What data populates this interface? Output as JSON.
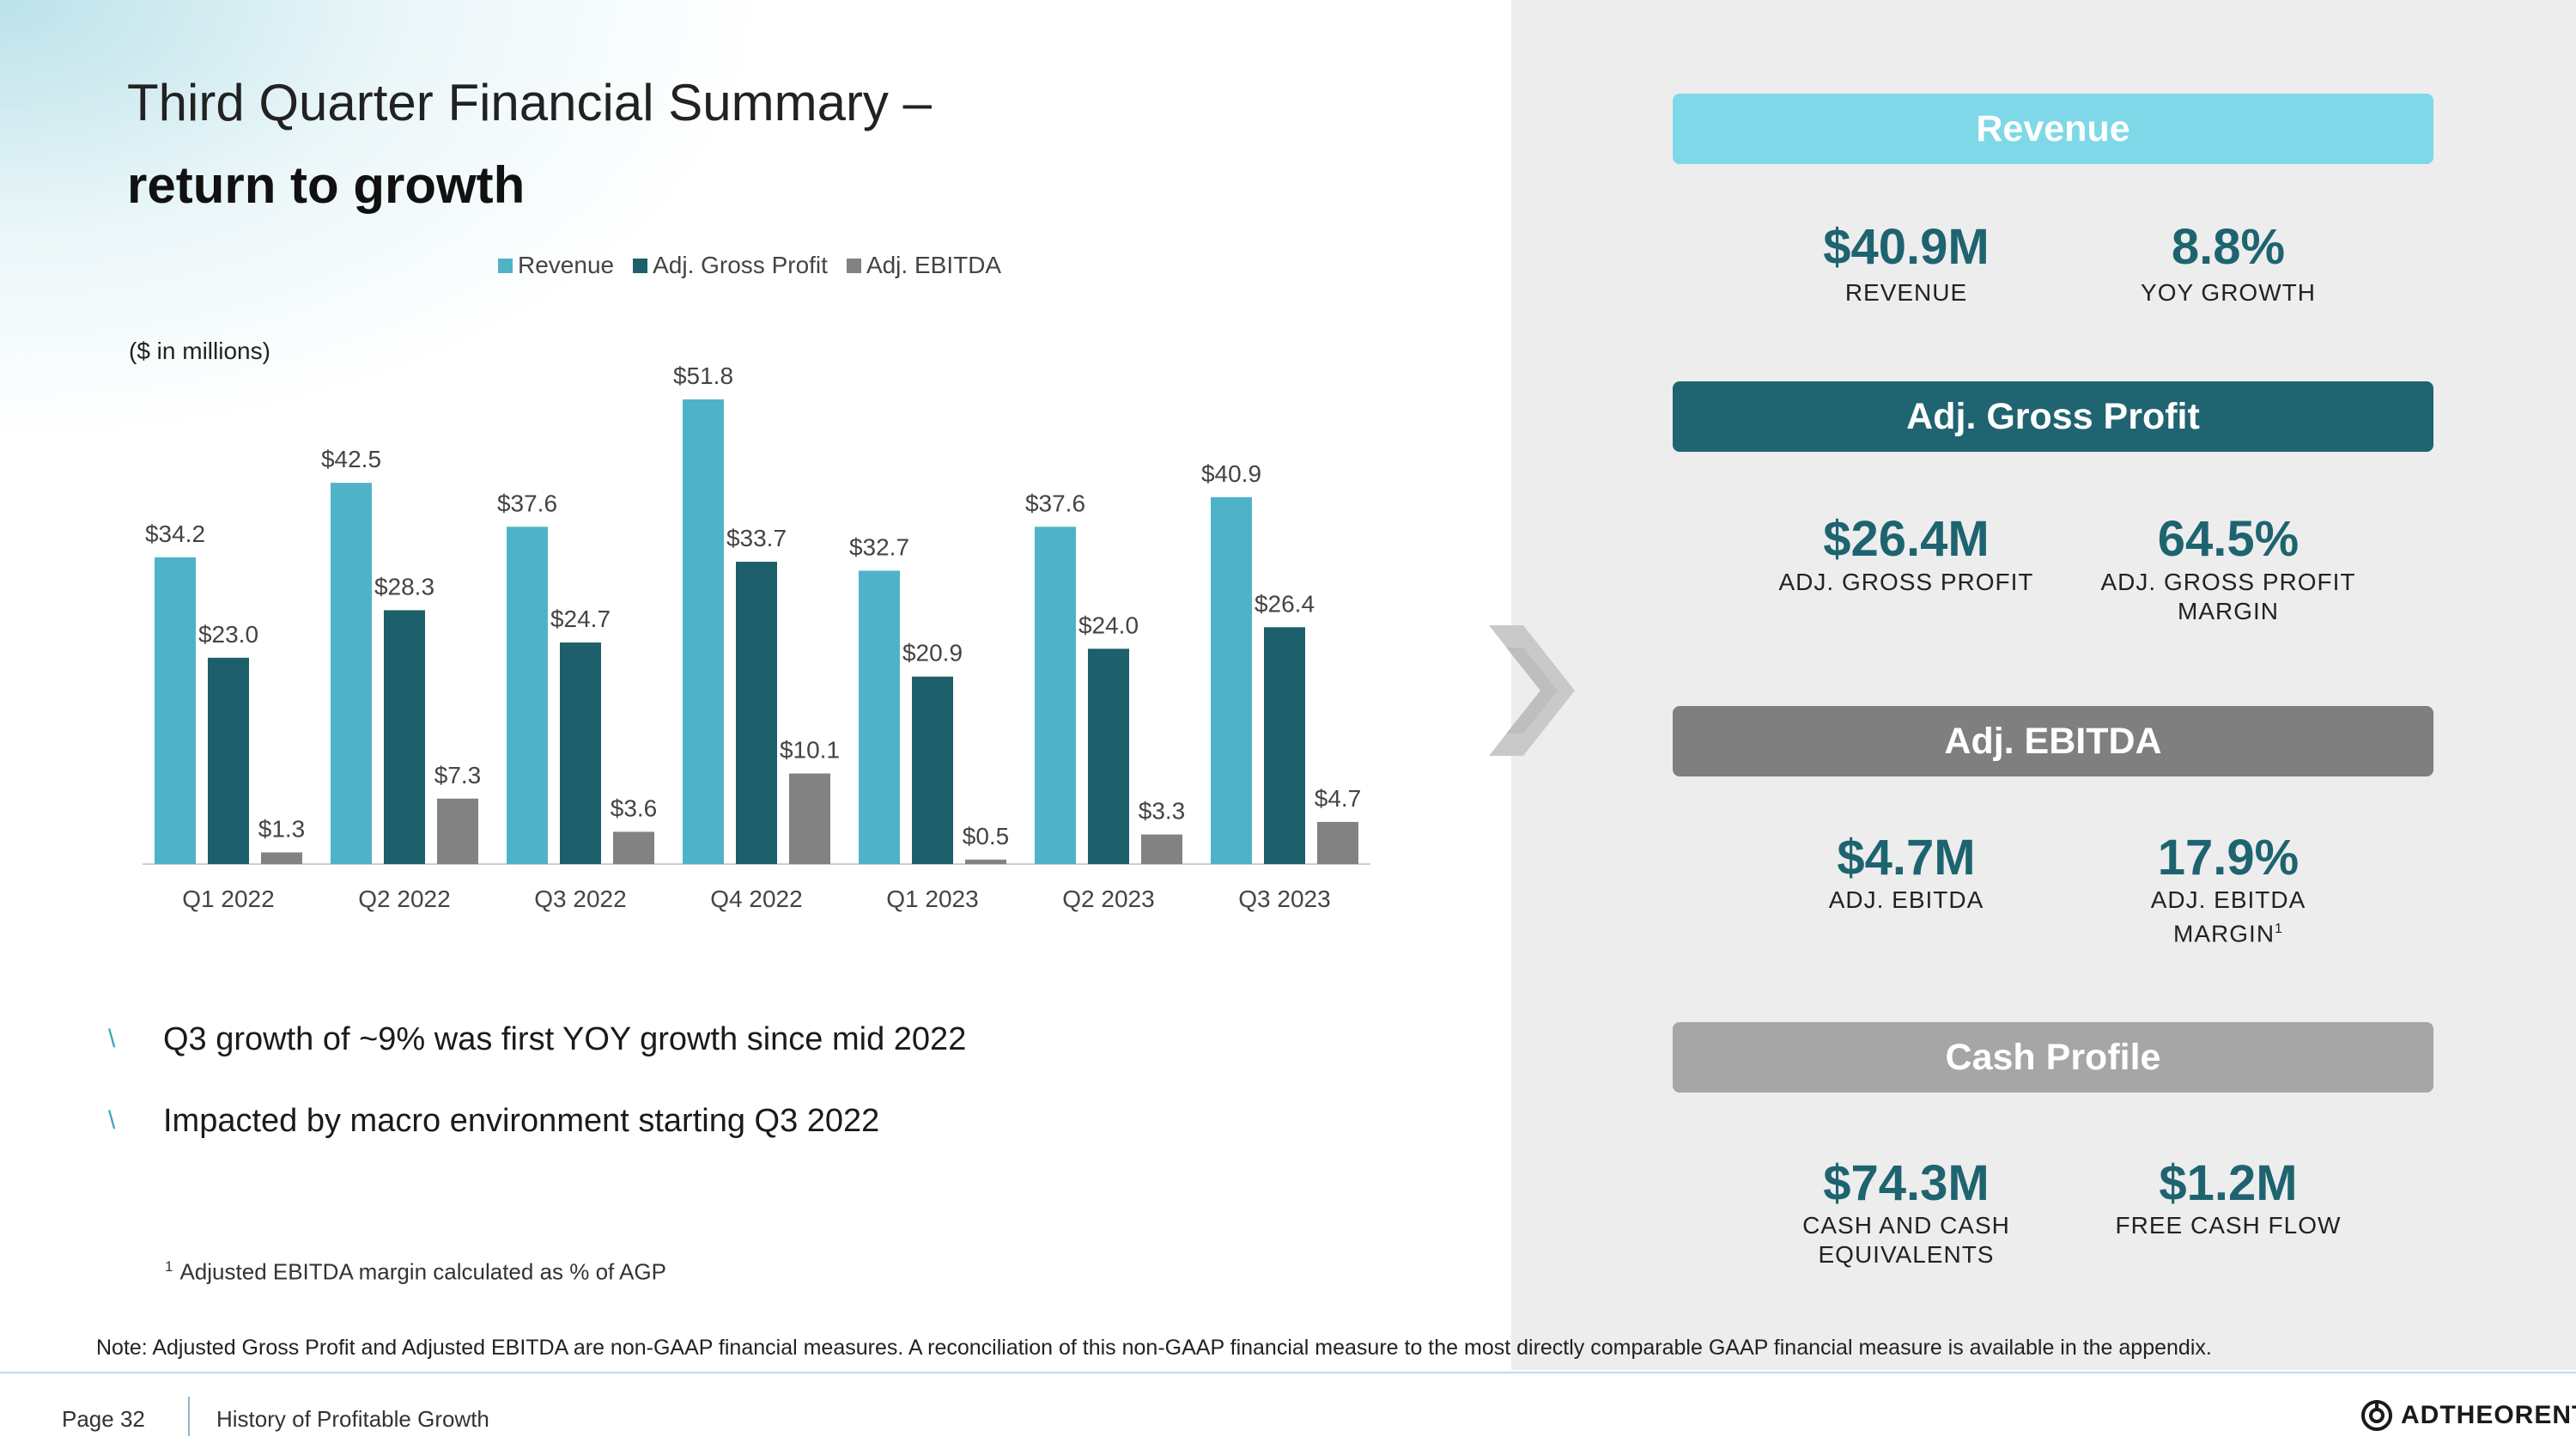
{
  "slide": {
    "title": "Third Quarter Financial Summary –",
    "subtitle": "return to growth",
    "units_label": "($ in millions)",
    "bullets": [
      "Q3 growth of ~9% was first YOY growth since mid 2022",
      "Impacted by macro environment starting Q3 2022"
    ],
    "bullet_mark": "\\",
    "footnote_marker": "1",
    "footnote": "Adjusted EBITDA margin calculated as % of AGP",
    "note": "Note: Adjusted Gross Profit and Adjusted EBITDA are non-GAAP financial measures. A reconciliation of this non-GAAP financial measure to the most directly comparable GAAP financial measure is available in the appendix."
  },
  "colors": {
    "revenue": "#4fb3c8",
    "gross_profit": "#1d5f6b",
    "ebitda": "#828282",
    "revenue_header": "#7ed8e8",
    "gross_profit_header": "#1f6470",
    "ebitda_header": "#7f7f7f",
    "cash_header": "#a6a6a6",
    "kpi_value": "#1e6470"
  },
  "chart_data": {
    "type": "bar",
    "categories": [
      "Q1 2022",
      "Q2 2022",
      "Q3 2022",
      "Q4 2022",
      "Q1 2023",
      "Q2 2023",
      "Q3 2023"
    ],
    "series": [
      {
        "name": "Revenue",
        "values": [
          34.2,
          42.5,
          37.6,
          51.8,
          32.7,
          37.6,
          40.9
        ],
        "labels": [
          "$34.2",
          "$42.5",
          "$37.6",
          "$51.8",
          "$32.7",
          "$37.6",
          "$40.9"
        ]
      },
      {
        "name": "Adj. Gross Profit",
        "values": [
          23.0,
          28.3,
          24.7,
          33.7,
          20.9,
          24.0,
          26.4
        ],
        "labels": [
          "$23.0",
          "$28.3",
          "$24.7",
          "$33.7",
          "$20.9",
          "$24.0",
          "$26.4"
        ]
      },
      {
        "name": "Adj. EBITDA",
        "values": [
          1.3,
          7.3,
          3.6,
          10.1,
          0.5,
          3.3,
          4.7
        ],
        "labels": [
          "$1.3",
          "$7.3",
          "$3.6",
          "$10.1",
          "$0.5",
          "$3.3",
          "$4.7"
        ]
      }
    ],
    "title": "",
    "xlabel": "",
    "ylabel": "($ in millions)",
    "ylim": [
      0,
      55
    ],
    "legend_position": "top",
    "grid": false
  },
  "panels": [
    {
      "header": "Revenue",
      "header_color": "#7ed8e8",
      "left": {
        "value": "$40.9M",
        "label_lines": [
          "REVENUE"
        ]
      },
      "right": {
        "value": "8.8%",
        "label_lines": [
          "YOY GROWTH"
        ]
      }
    },
    {
      "header": "Adj. Gross Profit",
      "header_color": "#1f6470",
      "left": {
        "value": "$26.4M",
        "label_lines": [
          "ADJ. GROSS PROFIT"
        ]
      },
      "right": {
        "value": "64.5%",
        "label_lines": [
          "ADJ. GROSS PROFIT",
          "MARGIN"
        ]
      }
    },
    {
      "header": "Adj. EBITDA",
      "header_color": "#7f7f7f",
      "left": {
        "value": "$4.7M",
        "label_lines": [
          "ADJ. EBITDA"
        ]
      },
      "right": {
        "value": "17.9%",
        "label_lines": [
          "ADJ. EBITDA",
          "MARGIN"
        ],
        "label_sup": "1"
      }
    },
    {
      "header": "Cash Profile",
      "header_color": "#a6a6a6",
      "left": {
        "value": "$74.3M",
        "label_lines": [
          "CASH AND CASH",
          "EQUIVALENTS"
        ]
      },
      "right": {
        "value": "$1.2M",
        "label_lines": [
          "FREE CASH FLOW"
        ]
      }
    }
  ],
  "footer": {
    "page": "Page 32",
    "section": "History of Profitable Growth",
    "brand": "ADTHEORENT"
  },
  "icons": {
    "arrow": "chevron-right-icon",
    "logo": "adtheorent-logo-icon"
  }
}
